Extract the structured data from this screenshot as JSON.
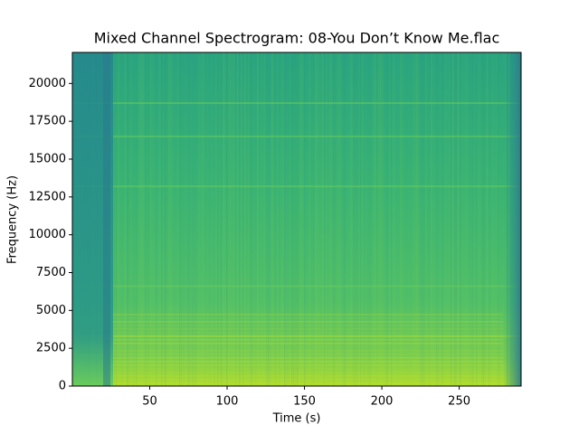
{
  "chart_data": {
    "type": "spectrogram",
    "title": "Mixed Channel Spectrogram: 08-You Don’t Know Me.flac",
    "x_label": "Time (s)",
    "y_label": "Frequency (Hz)",
    "xlim": [
      0,
      290
    ],
    "xticks": [
      50,
      100,
      150,
      200,
      250
    ],
    "ylim": [
      0,
      22050
    ],
    "yticks": [
      0,
      2500,
      5000,
      7500,
      10000,
      12500,
      15000,
      17500,
      20000
    ]
  }
}
